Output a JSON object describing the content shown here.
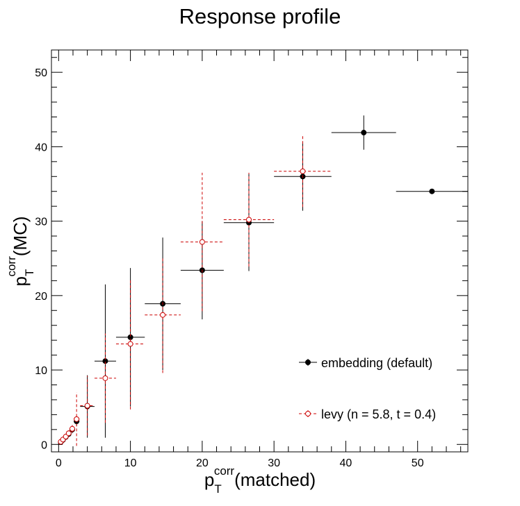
{
  "chart_data": {
    "type": "scatter",
    "title": "Response profile",
    "xlabel": {
      "main": "p",
      "sub": "T",
      "sup": "corr",
      "suffix": "(matched)"
    },
    "ylabel": {
      "main": "p",
      "sub": "T",
      "sup": "corr",
      "suffix": "(MC)"
    },
    "xlim": [
      -1,
      57
    ],
    "ylim": [
      -1,
      53
    ],
    "xticks": [
      "0",
      "10",
      "20",
      "30",
      "40",
      "50"
    ],
    "yticks": [
      "0",
      "10",
      "20",
      "30",
      "40",
      "50"
    ],
    "legend_position": "bottom-right",
    "grid": false,
    "series": [
      {
        "name": "embedding (default)",
        "color": "#000000",
        "marker": "filled-circle",
        "line": "solid",
        "points": [
          {
            "x": 0.3,
            "y": 0.3,
            "xerr": 0.15,
            "yerr": 0.2
          },
          {
            "x": 0.6,
            "y": 0.6,
            "xerr": 0.15,
            "yerr": 0.3
          },
          {
            "x": 1.0,
            "y": 1.0,
            "xerr": 0.2,
            "yerr": 0.3
          },
          {
            "x": 1.4,
            "y": 1.4,
            "xerr": 0.2,
            "yerr": 0.4
          },
          {
            "x": 1.9,
            "y": 2.0,
            "xerr": 0.3,
            "yerr": 0.5
          },
          {
            "x": 2.5,
            "y": 3.1,
            "xerr": 0.4,
            "yerr": 0.6
          },
          {
            "x": 4.0,
            "y": 5.1,
            "xerr": 1.0,
            "yerr": 4.2
          },
          {
            "x": 6.5,
            "y": 11.2,
            "xerr": 1.5,
            "yerr": 10.3
          },
          {
            "x": 10.0,
            "y": 14.4,
            "xerr": 2.0,
            "yerr": 9.3
          },
          {
            "x": 14.5,
            "y": 18.9,
            "xerr": 2.5,
            "yerr": 8.9
          },
          {
            "x": 20.0,
            "y": 23.4,
            "xerr": 3.0,
            "yerr": 6.6
          },
          {
            "x": 26.5,
            "y": 29.8,
            "xerr": 3.5,
            "yerr": 6.5
          },
          {
            "x": 34.0,
            "y": 36.0,
            "xerr": 4.0,
            "yerr": 4.6
          },
          {
            "x": 42.5,
            "y": 41.9,
            "xerr": 4.5,
            "yerr": 2.3
          },
          {
            "x": 52.0,
            "y": 34.0,
            "xerr": 5.0,
            "yerr": 0.2
          }
        ]
      },
      {
        "name": "levy (n = 5.8, t = 0.4)",
        "color": "#cc0000",
        "marker": "open-circle",
        "line": "dashed",
        "points": [
          {
            "x": 0.3,
            "y": 0.35,
            "xerr": 0.15,
            "yerr": 0.2
          },
          {
            "x": 0.6,
            "y": 0.65,
            "xerr": 0.15,
            "yerr": 0.3
          },
          {
            "x": 1.0,
            "y": 1.05,
            "xerr": 0.2,
            "yerr": 0.3
          },
          {
            "x": 1.4,
            "y": 1.5,
            "xerr": 0.2,
            "yerr": 0.4
          },
          {
            "x": 1.9,
            "y": 2.1,
            "xerr": 0.3,
            "yerr": 0.5
          },
          {
            "x": 2.5,
            "y": 3.4,
            "xerr": 0.4,
            "yerr": 3.6
          },
          {
            "x": 4.0,
            "y": 5.2,
            "xerr": 1.0,
            "yerr": 4.0
          },
          {
            "x": 6.5,
            "y": 8.9,
            "xerr": 1.5,
            "yerr": 6.0
          },
          {
            "x": 10.0,
            "y": 13.5,
            "xerr": 2.0,
            "yerr": 8.8
          },
          {
            "x": 14.5,
            "y": 17.4,
            "xerr": 2.5,
            "yerr": 7.8
          },
          {
            "x": 20.0,
            "y": 27.2,
            "xerr": 3.0,
            "yerr": 9.3
          },
          {
            "x": 26.5,
            "y": 30.2,
            "xerr": 3.5,
            "yerr": 6.3
          },
          {
            "x": 34.0,
            "y": 36.7,
            "xerr": 4.0,
            "yerr": 4.8
          }
        ]
      }
    ]
  }
}
